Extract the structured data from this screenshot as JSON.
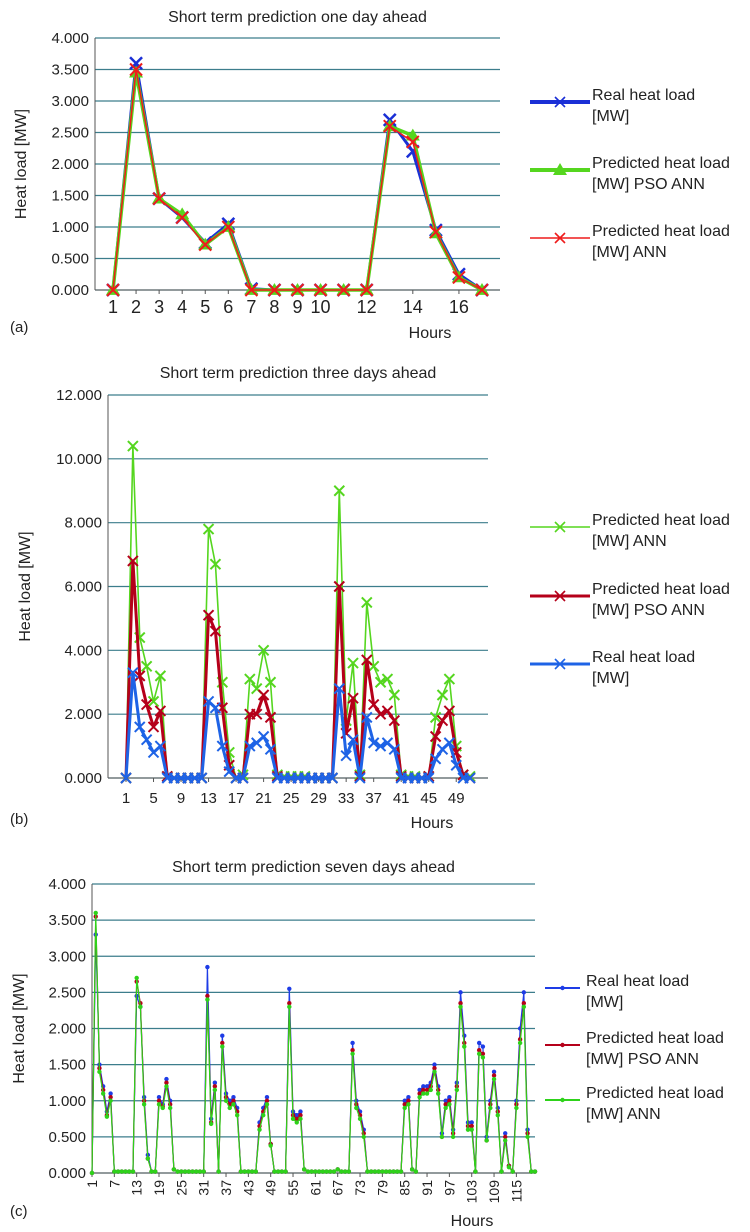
{
  "figure": {
    "panels": [
      "(a)",
      "(b)",
      "(c)"
    ]
  },
  "chart_data": [
    {
      "type": "line",
      "panel_label": "(a)",
      "title": "Short term prediction one day ahead",
      "xlabel": "Hours",
      "ylabel": "Heat load [MW]",
      "ylim": [
        0,
        4
      ],
      "yticks": [
        "0.000",
        "0.500",
        "1.000",
        "1.500",
        "2.000",
        "2.500",
        "3.000",
        "3.500",
        "4.000"
      ],
      "x": [
        1,
        2,
        3,
        4,
        5,
        6,
        7,
        8,
        9,
        10,
        11,
        12,
        13,
        14,
        15,
        16,
        17
      ],
      "xticks": [
        "1",
        "2",
        "3",
        "4",
        "5",
        "6",
        "7",
        "8",
        "9",
        "10",
        "12",
        "14",
        "16"
      ],
      "xtick_positions": [
        1,
        2,
        3,
        4,
        5,
        6,
        7,
        8,
        9,
        10,
        12,
        14,
        16
      ],
      "grid": true,
      "legend_position": "right",
      "series": [
        {
          "name": "Real heat load [MW]",
          "color": "#1a2fd6",
          "marker": "x",
          "values": [
            0.0,
            3.6,
            1.45,
            1.15,
            0.75,
            1.05,
            0.02,
            0.0,
            0.0,
            0.0,
            0.0,
            0.0,
            2.7,
            2.2,
            0.95,
            0.25,
            0.0
          ]
        },
        {
          "name": "Predicted heat load [MW] PSO ANN",
          "color": "#55d61f",
          "marker": "triangle",
          "values": [
            0.0,
            3.45,
            1.45,
            1.2,
            0.72,
            1.0,
            0.0,
            0.0,
            0.0,
            0.0,
            0.0,
            0.0,
            2.6,
            2.45,
            0.9,
            0.2,
            0.0
          ]
        },
        {
          "name": "Predicted heat load [MW] ANN",
          "color": "#ee1c1c",
          "marker": "x",
          "values": [
            0.0,
            3.5,
            1.45,
            1.15,
            0.72,
            1.0,
            0.0,
            0.0,
            0.0,
            0.0,
            0.0,
            0.0,
            2.6,
            2.35,
            0.92,
            0.2,
            0.0
          ]
        }
      ]
    },
    {
      "type": "line",
      "panel_label": "(b)",
      "title": "Short term prediction three days ahead",
      "xlabel": "Hours",
      "ylabel": "Heat load [MW]",
      "ylim": [
        0,
        12
      ],
      "yticks": [
        "0.000",
        "2.000",
        "4.000",
        "6.000",
        "8.000",
        "10.000",
        "12.000"
      ],
      "x": [
        1,
        2,
        3,
        4,
        5,
        6,
        7,
        8,
        9,
        10,
        11,
        12,
        13,
        14,
        15,
        16,
        17,
        18,
        19,
        20,
        21,
        22,
        23,
        24,
        25,
        26,
        27,
        28,
        29,
        30,
        31,
        32,
        33,
        34,
        35,
        36,
        37,
        38,
        39,
        40,
        41,
        42,
        43,
        44,
        45,
        46,
        47,
        48,
        49,
        50,
        51
      ],
      "xticks": [
        "1",
        "5",
        "9",
        "13",
        "17",
        "21",
        "25",
        "29",
        "33",
        "37",
        "41",
        "45",
        "49"
      ],
      "xtick_positions": [
        1,
        5,
        9,
        13,
        17,
        21,
        25,
        29,
        33,
        37,
        41,
        45,
        49
      ],
      "grid": true,
      "legend_position": "right",
      "series": [
        {
          "name": "Predicted heat load [MW] ANN",
          "color": "#55d61f",
          "marker": "x",
          "values": [
            0.0,
            10.4,
            4.4,
            3.5,
            2.4,
            3.2,
            0.05,
            0.0,
            0.0,
            0.0,
            0.0,
            0.0,
            7.8,
            6.7,
            3.0,
            0.8,
            0.0,
            0.1,
            3.1,
            2.8,
            4.0,
            3.0,
            0.1,
            0.05,
            0.05,
            0.05,
            0.05,
            0.0,
            0.0,
            0.0,
            0.0,
            9.0,
            1.8,
            3.6,
            0.1,
            5.5,
            3.5,
            3.0,
            3.1,
            2.6,
            0.1,
            0.05,
            0.05,
            0.0,
            0.05,
            1.9,
            2.6,
            3.1,
            1.0,
            0.1,
            0.05
          ]
        },
        {
          "name": "Predicted heat load [MW] PSO ANN",
          "color": "#b5001a",
          "marker": "x",
          "values": [
            0.0,
            6.8,
            3.2,
            2.3,
            1.6,
            2.1,
            0.05,
            0.0,
            0.0,
            0.0,
            0.0,
            0.0,
            5.1,
            4.6,
            2.2,
            0.4,
            0.0,
            0.0,
            2.0,
            2.0,
            2.6,
            1.9,
            0.05,
            0.0,
            0.0,
            0.0,
            0.0,
            0.0,
            0.0,
            0.0,
            0.0,
            6.0,
            1.4,
            2.5,
            0.05,
            3.7,
            2.3,
            2.0,
            2.1,
            1.8,
            0.05,
            0.0,
            0.0,
            0.0,
            0.05,
            1.3,
            1.8,
            2.1,
            0.8,
            0.1,
            0.0
          ]
        },
        {
          "name": "Real heat load [MW]",
          "color": "#1e63e6",
          "marker": "x",
          "values": [
            0.0,
            3.3,
            1.6,
            1.2,
            0.8,
            1.0,
            0.0,
            0.0,
            0.0,
            0.0,
            0.0,
            0.0,
            2.4,
            2.2,
            1.0,
            0.2,
            0.0,
            0.0,
            1.0,
            1.1,
            1.3,
            0.9,
            0.0,
            0.0,
            0.0,
            0.0,
            0.0,
            0.0,
            0.0,
            0.0,
            0.0,
            2.8,
            0.7,
            1.2,
            0.0,
            1.9,
            1.1,
            1.0,
            1.1,
            0.9,
            0.0,
            0.0,
            0.0,
            0.0,
            0.0,
            0.6,
            0.9,
            1.1,
            0.4,
            0.0,
            0.0
          ]
        }
      ]
    },
    {
      "type": "line",
      "panel_label": "(c)",
      "title": "Short term prediction seven days ahead",
      "xlabel": "Hours",
      "ylabel": "Heat load [MW]",
      "ylim": [
        0,
        4
      ],
      "yticks": [
        "0.000",
        "0.500",
        "1.000",
        "1.500",
        "2.000",
        "2.500",
        "3.000",
        "3.500",
        "4.000"
      ],
      "x_range": [
        1,
        120
      ],
      "xticks": [
        "1",
        "7",
        "13",
        "19",
        "25",
        "31",
        "37",
        "43",
        "49",
        "55",
        "61",
        "67",
        "73",
        "79",
        "85",
        "91",
        "97",
        "103",
        "109",
        "115"
      ],
      "xtick_positions": [
        1,
        7,
        13,
        19,
        25,
        31,
        37,
        43,
        49,
        55,
        61,
        67,
        73,
        79,
        85,
        91,
        97,
        103,
        109,
        115
      ],
      "grid": true,
      "legend_position": "right",
      "series": [
        {
          "name": "Real heat load [MW]",
          "color": "#1e3ce6",
          "marker": "dot",
          "values": [
            0.0,
            3.3,
            1.5,
            1.2,
            0.85,
            1.1,
            0.02,
            0.02,
            0.02,
            0.02,
            0.02,
            0.02,
            2.45,
            2.3,
            1.05,
            0.25,
            0.02,
            0.02,
            1.05,
            0.95,
            1.3,
            1.0,
            0.05,
            0.02,
            0.02,
            0.02,
            0.02,
            0.02,
            0.02,
            0.02,
            0.02,
            2.85,
            0.75,
            1.25,
            0.02,
            1.9,
            1.1,
            1.0,
            1.05,
            0.9,
            0.02,
            0.02,
            0.02,
            0.02,
            0.02,
            0.7,
            0.9,
            1.05,
            0.4,
            0.02,
            0.02,
            0.02,
            0.02,
            2.55,
            0.85,
            0.8,
            0.85,
            0.05,
            0.02,
            0.02,
            0.02,
            0.02,
            0.02,
            0.02,
            0.02,
            0.02,
            0.05,
            0.02,
            0.02,
            0.02,
            1.8,
            1.0,
            0.85,
            0.6,
            0.02,
            0.02,
            0.02,
            0.02,
            0.02,
            0.02,
            0.02,
            0.02,
            0.02,
            0.02,
            1.0,
            1.05,
            0.05,
            0.02,
            1.15,
            1.2,
            1.2,
            1.25,
            1.5,
            1.2,
            0.55,
            1.0,
            1.05,
            0.6,
            1.25,
            2.5,
            1.9,
            0.7,
            0.7,
            0.02,
            1.8,
            1.75,
            0.5,
            1.0,
            1.4,
            0.9,
            0.02,
            0.55,
            0.1,
            0.02,
            1.0,
            2.0,
            2.5,
            0.6,
            0.02,
            0.02
          ]
        },
        {
          "name": "Predicted heat load [MW] PSO ANN",
          "color": "#b5001a",
          "marker": "dot",
          "values": [
            0.0,
            3.55,
            1.45,
            1.15,
            0.8,
            1.05,
            0.02,
            0.02,
            0.02,
            0.02,
            0.02,
            0.02,
            2.65,
            2.35,
            1.0,
            0.2,
            0.02,
            0.02,
            1.0,
            0.92,
            1.25,
            0.95,
            0.05,
            0.02,
            0.02,
            0.02,
            0.02,
            0.02,
            0.02,
            0.02,
            0.02,
            2.45,
            0.7,
            1.2,
            0.02,
            1.8,
            1.05,
            0.95,
            1.0,
            0.85,
            0.02,
            0.02,
            0.02,
            0.02,
            0.02,
            0.65,
            0.85,
            1.0,
            0.4,
            0.02,
            0.02,
            0.02,
            0.02,
            2.35,
            0.8,
            0.75,
            0.8,
            0.05,
            0.02,
            0.02,
            0.02,
            0.02,
            0.02,
            0.02,
            0.02,
            0.02,
            0.05,
            0.02,
            0.02,
            0.02,
            1.7,
            0.95,
            0.8,
            0.55,
            0.02,
            0.02,
            0.02,
            0.02,
            0.02,
            0.02,
            0.02,
            0.02,
            0.02,
            0.02,
            0.95,
            1.0,
            0.05,
            0.02,
            1.1,
            1.15,
            1.15,
            1.2,
            1.45,
            1.15,
            0.5,
            0.95,
            1.0,
            0.55,
            1.2,
            2.35,
            1.8,
            0.65,
            0.65,
            0.02,
            1.7,
            1.65,
            0.45,
            0.95,
            1.35,
            0.85,
            0.02,
            0.5,
            0.1,
            0.02,
            0.95,
            1.85,
            2.35,
            0.55,
            0.02,
            0.02
          ]
        },
        {
          "name": "Predicted heat load [MW] ANN",
          "color": "#2ed21a",
          "marker": "dot",
          "values": [
            0.0,
            3.6,
            1.4,
            1.1,
            0.78,
            1.0,
            0.02,
            0.02,
            0.02,
            0.02,
            0.02,
            0.02,
            2.7,
            2.3,
            0.95,
            0.2,
            0.02,
            0.02,
            0.95,
            0.9,
            1.2,
            0.9,
            0.05,
            0.02,
            0.02,
            0.02,
            0.02,
            0.02,
            0.02,
            0.02,
            0.02,
            2.4,
            0.68,
            1.15,
            0.02,
            1.75,
            1.0,
            0.9,
            0.95,
            0.8,
            0.02,
            0.02,
            0.02,
            0.02,
            0.02,
            0.6,
            0.8,
            0.95,
            0.38,
            0.02,
            0.02,
            0.02,
            0.02,
            2.3,
            0.75,
            0.7,
            0.75,
            0.05,
            0.02,
            0.02,
            0.02,
            0.02,
            0.02,
            0.02,
            0.02,
            0.02,
            0.05,
            0.02,
            0.02,
            0.02,
            1.65,
            0.9,
            0.75,
            0.5,
            0.02,
            0.02,
            0.02,
            0.02,
            0.02,
            0.02,
            0.02,
            0.02,
            0.02,
            0.02,
            0.9,
            0.95,
            0.05,
            0.02,
            1.05,
            1.1,
            1.1,
            1.15,
            1.4,
            1.1,
            0.5,
            0.9,
            0.95,
            0.5,
            1.15,
            2.3,
            1.75,
            0.6,
            0.6,
            0.02,
            1.65,
            1.6,
            0.45,
            0.9,
            1.3,
            0.8,
            0.02,
            0.45,
            0.08,
            0.02,
            0.9,
            1.8,
            2.3,
            0.5,
            0.02,
            0.02
          ]
        }
      ]
    }
  ]
}
